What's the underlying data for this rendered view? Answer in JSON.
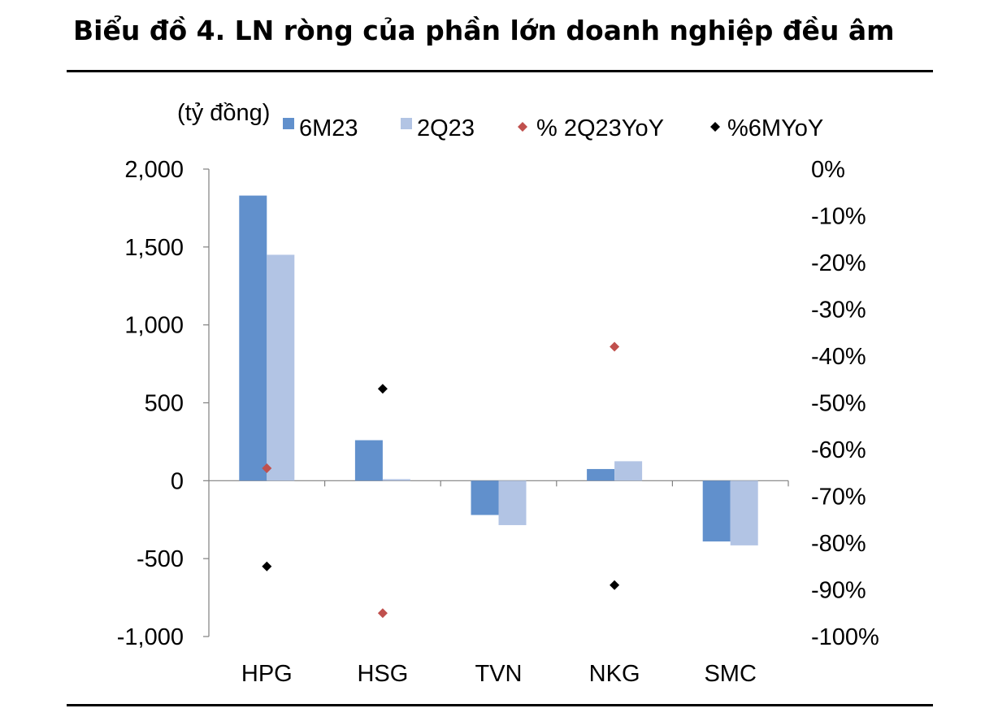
{
  "title": "Biểu đồ 4. LN ròng của phần lớn doanh nghiệp đều âm",
  "colors": {
    "series_6m": "#6190cc",
    "series_2q": "#b2c4e4",
    "marker_2q_yoy": "#c0504d",
    "marker_6m_yoy": "#000000"
  },
  "chart_data": {
    "type": "bar",
    "unit_label": "(tỷ đồng)",
    "categories": [
      "HPG",
      "HSG",
      "TVN",
      "NKG",
      "SMC"
    ],
    "series": [
      {
        "name": "6M23",
        "kind": "bar",
        "axis": "left",
        "values": [
          1830,
          260,
          -220,
          75,
          -390
        ]
      },
      {
        "name": "2Q23",
        "kind": "bar",
        "axis": "left",
        "values": [
          1450,
          10,
          -285,
          125,
          -415
        ]
      }
    ],
    "markers": [
      {
        "name": "% 2Q23YoY",
        "kind": "scatter",
        "axis": "right",
        "values": [
          -0.64,
          null,
          null,
          -0.38,
          null
        ],
        "extra": [
          {
            "category": "HSG",
            "value": -0.95
          }
        ]
      },
      {
        "name": "%6MYoY",
        "kind": "scatter",
        "axis": "right",
        "values": [
          -0.85,
          -0.47,
          null,
          -0.89,
          null
        ]
      }
    ],
    "left_axis": {
      "min": -1000,
      "max": 2000,
      "ticks": [
        2000,
        1500,
        1000,
        500,
        0,
        -500,
        -1000
      ],
      "tick_labels": [
        "2,000",
        "1,500",
        "1,000",
        "500",
        "0",
        "-500",
        "-1,000"
      ]
    },
    "right_axis": {
      "min": -1.0,
      "max": 0.0,
      "ticks": [
        0,
        -0.1,
        -0.2,
        -0.3,
        -0.4,
        -0.5,
        -0.6,
        -0.7,
        -0.8,
        -0.9,
        -1.0
      ],
      "tick_labels": [
        "0%",
        "-10%",
        "-20%",
        "-30%",
        "-40%",
        "-50%",
        "-60%",
        "-70%",
        "-80%",
        "-90%",
        "-100%"
      ]
    },
    "legend": [
      "6M23",
      "2Q23",
      "% 2Q23YoY",
      "%6MYoY"
    ],
    "legend_position": "top"
  }
}
